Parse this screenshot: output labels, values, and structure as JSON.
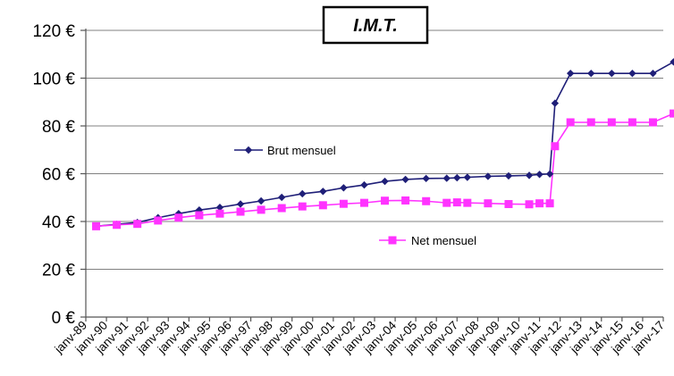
{
  "chart_data": {
    "type": "line",
    "title": "I.M.T.",
    "ylim": [
      0,
      120
    ],
    "y_ticks": [
      0,
      20,
      40,
      60,
      80,
      100,
      120
    ],
    "y_tick_labels": [
      "0 €",
      "20 €",
      "40 €",
      "60 €",
      "80 €",
      "100 €",
      "120 €"
    ],
    "x_ticks": [
      "janv-89",
      "janv-90",
      "janv-91",
      "janv-92",
      "janv-93",
      "janv-94",
      "janv-95",
      "janv-96",
      "janv-97",
      "janv-98",
      "janv-99",
      "janv-00",
      "janv-01",
      "janv-02",
      "janv-03",
      "janv-04",
      "janv-05",
      "janv-06",
      "janv-07",
      "janv-08",
      "janv-09",
      "janv-10",
      "janv-11",
      "janv-12",
      "janv-13",
      "janv-14",
      "janv-15",
      "janv-16",
      "janv-17"
    ],
    "grid": true,
    "series": [
      {
        "name": "Brut mensuel",
        "color": "#1f1f78",
        "marker": "diamond",
        "points": [
          [
            "1989-07",
            38.0
          ],
          [
            "1990-07",
            38.8
          ],
          [
            "1991-07",
            39.6
          ],
          [
            "1992-07",
            41.6
          ],
          [
            "1993-07",
            43.3
          ],
          [
            "1994-07",
            44.8
          ],
          [
            "1995-07",
            45.9
          ],
          [
            "1996-07",
            47.3
          ],
          [
            "1997-07",
            48.6
          ],
          [
            "1998-07",
            50.1
          ],
          [
            "1999-07",
            51.6
          ],
          [
            "2000-07",
            52.6
          ],
          [
            "2001-07",
            54.1
          ],
          [
            "2002-07",
            55.3
          ],
          [
            "2003-07",
            56.8
          ],
          [
            "2004-07",
            57.6
          ],
          [
            "2005-07",
            58.0
          ],
          [
            "2006-07",
            58.1
          ],
          [
            "2007-01",
            58.3
          ],
          [
            "2007-07",
            58.5
          ],
          [
            "2008-07",
            58.9
          ],
          [
            "2009-07",
            59.1
          ],
          [
            "2010-07",
            59.3
          ],
          [
            "2011-01",
            59.7
          ],
          [
            "2011-07",
            59.9
          ],
          [
            "2011-10",
            89.5
          ],
          [
            "2012-07",
            102.0
          ],
          [
            "2013-07",
            102.0
          ],
          [
            "2014-07",
            102.0
          ],
          [
            "2015-07",
            102.0
          ],
          [
            "2016-07",
            102.0
          ],
          [
            "2017-07",
            106.8
          ]
        ]
      },
      {
        "name": "Net mensuel",
        "color": "#ff33ff",
        "marker": "square",
        "points": [
          [
            "1989-07",
            38.0
          ],
          [
            "1990-07",
            38.6
          ],
          [
            "1991-07",
            39.0
          ],
          [
            "1992-07",
            40.4
          ],
          [
            "1993-07",
            41.6
          ],
          [
            "1994-07",
            42.6
          ],
          [
            "1995-07",
            43.3
          ],
          [
            "1996-07",
            44.1
          ],
          [
            "1997-07",
            44.9
          ],
          [
            "1998-07",
            45.6
          ],
          [
            "1999-07",
            46.3
          ],
          [
            "2000-07",
            46.8
          ],
          [
            "2001-07",
            47.4
          ],
          [
            "2002-07",
            47.8
          ],
          [
            "2003-07",
            48.7
          ],
          [
            "2004-07",
            48.8
          ],
          [
            "2005-07",
            48.5
          ],
          [
            "2006-07",
            47.8
          ],
          [
            "2007-01",
            48.0
          ],
          [
            "2007-07",
            47.8
          ],
          [
            "2008-07",
            47.6
          ],
          [
            "2009-07",
            47.3
          ],
          [
            "2010-07",
            47.2
          ],
          [
            "2011-01",
            47.6
          ],
          [
            "2011-07",
            47.6
          ],
          [
            "2011-10",
            71.5
          ],
          [
            "2012-07",
            81.5
          ],
          [
            "2013-07",
            81.5
          ],
          [
            "2014-07",
            81.5
          ],
          [
            "2015-07",
            81.5
          ],
          [
            "2016-07",
            81.5
          ],
          [
            "2017-07",
            85.2
          ]
        ]
      }
    ],
    "legend": [
      {
        "series": "Brut mensuel",
        "placement": "mid-left"
      },
      {
        "series": "Net mensuel",
        "placement": "mid-center"
      }
    ]
  }
}
